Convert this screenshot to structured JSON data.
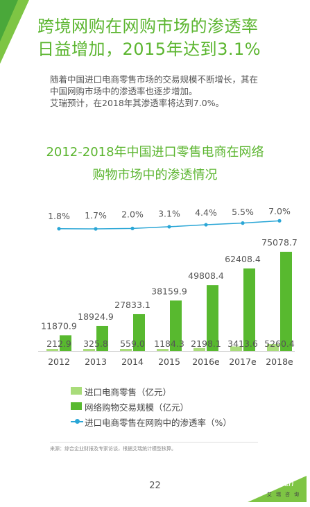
{
  "header": {
    "title_line1": "跨境网购在网购市场的渗透率",
    "title_line2": "日益增加，2015年达到3.1%"
  },
  "description": {
    "line1": "随着中国进口电商零售市场的交易规模不断增长，其在",
    "line2": "中国网购市场中的渗透率也逐步增加。",
    "line3": "艾瑞预计，在2018年其渗透率将达到7.0%。"
  },
  "chart_title": {
    "line1": "2012-2018年中国进口零售电商在网络",
    "line2": "购物市场中的渗透情况"
  },
  "colors": {
    "brand_green": "#5bb52f",
    "series1_color": "#a9dc7a",
    "series2_color": "#58b92f",
    "line_color": "#2aa6d6"
  },
  "chart_data": {
    "type": "bar",
    "categories": [
      "2012",
      "2013",
      "2014",
      "2015",
      "2016e",
      "2017e",
      "2018e"
    ],
    "series": [
      {
        "name": "进口电商零售（亿元）",
        "values": [
          212.9,
          325.8,
          559.0,
          1184.3,
          2198.1,
          3413.6,
          5260.4
        ],
        "labels": [
          "212.9",
          "325.8",
          "559.0",
          "1184.3",
          "2198.1",
          "3413.6",
          "5260.4"
        ]
      },
      {
        "name": "网络购物交易规模（亿元）",
        "values": [
          11870.9,
          18924.9,
          27833.1,
          38159.9,
          49808.4,
          62408.4,
          75078.7
        ],
        "labels": [
          "11870.9",
          "18924.9",
          "27833.1",
          "38159.9",
          "49808.4",
          "62408.4",
          "75078.7"
        ]
      }
    ],
    "line_series": {
      "name": "进口电商零售在网购中的渗透率（%）",
      "values": [
        1.8,
        1.7,
        2.0,
        3.1,
        4.4,
        5.5,
        7.0
      ],
      "labels": [
        "1.8%",
        "1.7%",
        "2.0%",
        "3.1%",
        "4.4%",
        "5.5%",
        "7.0%"
      ]
    },
    "legend_position": "bottom",
    "grid": false
  },
  "legend": {
    "item1": "进口电商零售（亿元）",
    "item2": "网络购物交易规模（亿元）",
    "item3": "进口电商零售在网购中的渗透率（%）"
  },
  "footer": {
    "source": "来源：综合企业财报及专家访谈，根据艾瑞统计模型核算。",
    "page_number": "22",
    "logo_text": "iResearch",
    "logo_sub": "艾瑞咨询"
  }
}
